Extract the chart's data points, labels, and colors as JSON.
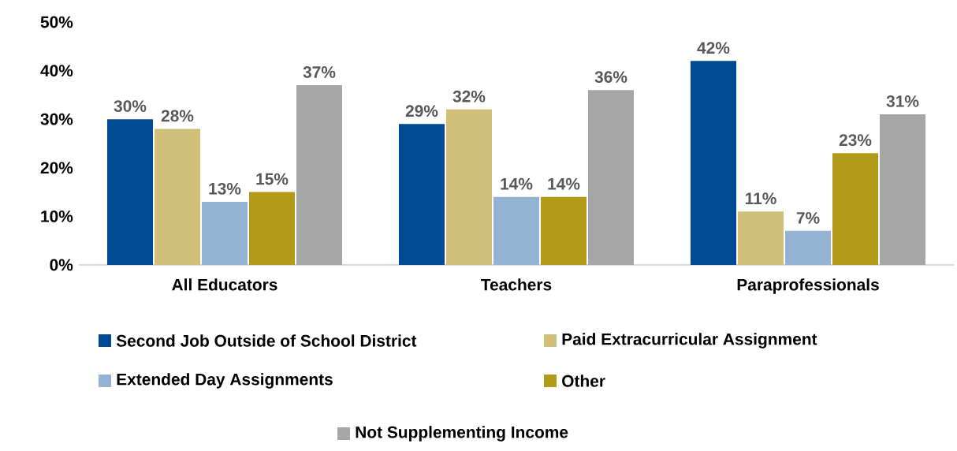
{
  "chart_data": {
    "type": "bar",
    "categories": [
      "All Educators",
      "Teachers",
      "Paraprofessionals"
    ],
    "series": [
      {
        "name": "Second Job Outside of School District",
        "color": "#004b93",
        "values": [
          30,
          29,
          42
        ],
        "value_labels": [
          "30%",
          "29%",
          "42%"
        ]
      },
      {
        "name": "Paid Extracurricular Assignment",
        "color": "#cfbf78",
        "values": [
          28,
          32,
          11
        ],
        "value_labels": [
          "28%",
          "32%",
          "11%"
        ]
      },
      {
        "name": "Extended Day Assignments",
        "color": "#94b3d3",
        "values": [
          13,
          14,
          7
        ],
        "value_labels": [
          "13%",
          "14%",
          "7%"
        ]
      },
      {
        "name": "Other",
        "color": "#b39b1a",
        "values": [
          15,
          14,
          23
        ],
        "value_labels": [
          "15%",
          "14%",
          "23%"
        ]
      },
      {
        "name": "Not Supplementing Income",
        "color": "#a6a6a6",
        "values": [
          37,
          36,
          31
        ],
        "value_labels": [
          "37%",
          "36%",
          "31%"
        ]
      }
    ],
    "ylim": [
      0,
      50
    ],
    "yticks": [
      {
        "value": 0,
        "label": "0%"
      },
      {
        "value": 10,
        "label": "10%"
      },
      {
        "value": 20,
        "label": "20%"
      },
      {
        "value": 30,
        "label": "30%"
      },
      {
        "value": 40,
        "label": "40%"
      },
      {
        "value": 50,
        "label": "50%"
      }
    ],
    "grid": false,
    "legend": "bottom"
  }
}
